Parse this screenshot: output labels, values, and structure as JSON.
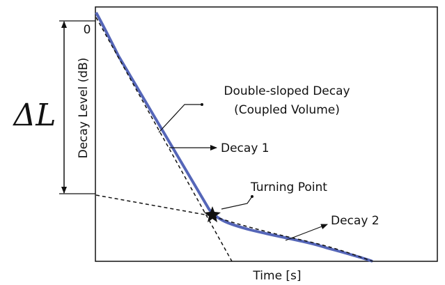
{
  "y_axis": {
    "label": "Decay Level (dB)",
    "tick": "0"
  },
  "x_axis": {
    "label": "Time [s]"
  },
  "range_label": "ΔL",
  "annotations": {
    "curve": [
      "Double-sloped Decay",
      "(Coupled Volume)"
    ],
    "decay1": "Decay 1",
    "turning": "Turning Point",
    "decay2": "Decay 2"
  }
}
